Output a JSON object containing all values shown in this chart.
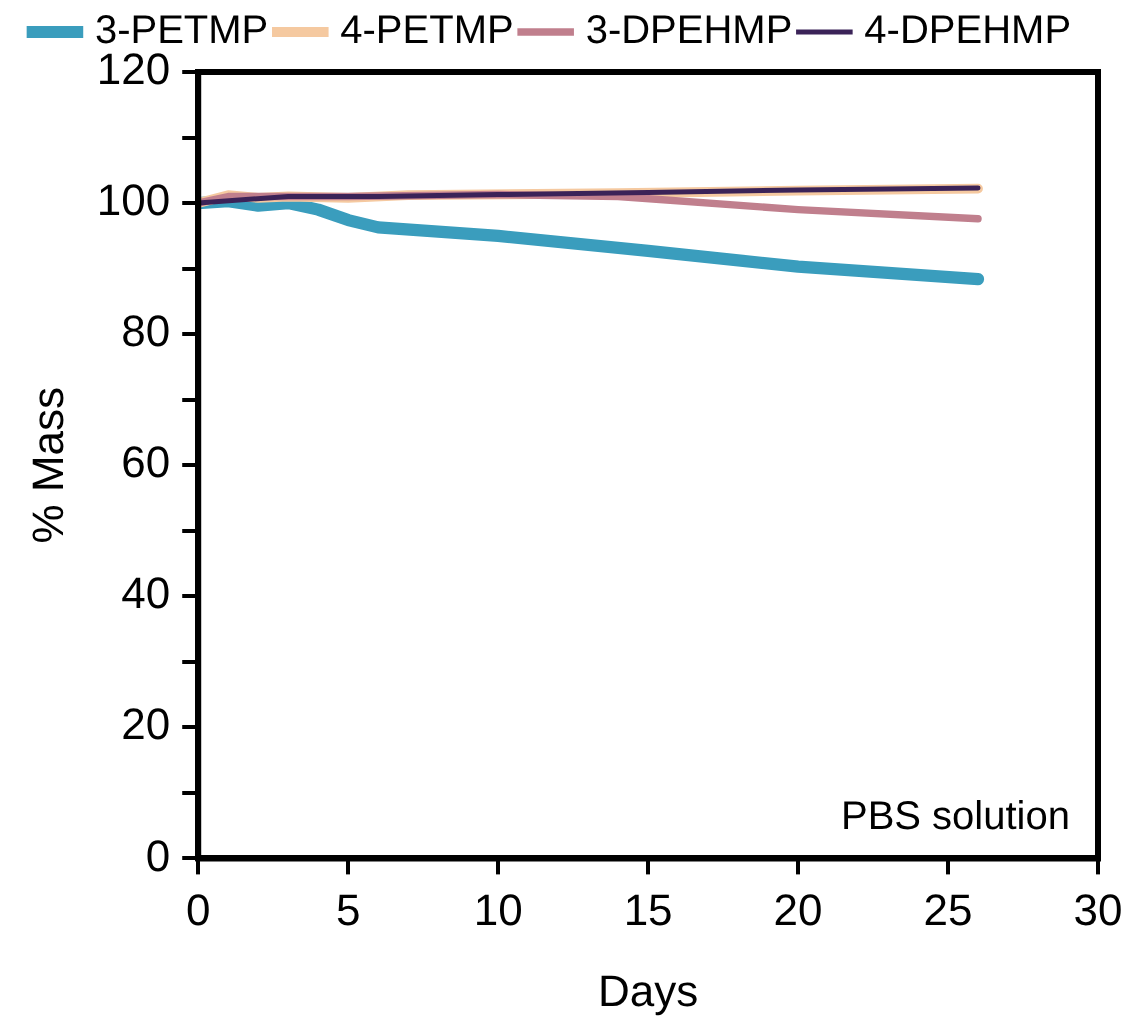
{
  "chart_data": {
    "type": "line",
    "xlabel": "Days",
    "ylabel": "% Mass",
    "annotations": [
      "PBS solution"
    ],
    "xlim": [
      0,
      30
    ],
    "xticks": [
      0,
      5,
      10,
      15,
      20,
      25,
      30
    ],
    "ylim": [
      0,
      120
    ],
    "yticks": [
      0,
      {
        "value": 10,
        "label": null
      },
      20,
      {
        "value": 30,
        "label": null
      },
      40,
      {
        "value": 50,
        "label": null
      },
      60,
      {
        "value": 70,
        "label": null
      },
      80,
      {
        "value": 90,
        "label": null
      },
      100,
      {
        "value": 110,
        "label": null
      },
      120
    ],
    "grid": false,
    "legend": "top",
    "marker": "none",
    "line_style": "solid",
    "series": [
      {
        "name": "3-PETMP",
        "color": "#3a9dbd",
        "x": [
          0,
          1,
          2,
          3,
          4,
          5,
          6,
          10,
          15,
          20,
          26
        ],
        "values": [
          100,
          100.3,
          99.6,
          100,
          99,
          97.4,
          96.3,
          95,
          92.7,
          90.3,
          88.4
        ]
      },
      {
        "name": "4-PETMP",
        "color": "#f5c9a0",
        "x": [
          0,
          1,
          2,
          3,
          5,
          7,
          14,
          20,
          26
        ],
        "values": [
          100,
          101.2,
          100.8,
          101,
          100.8,
          101.2,
          101.5,
          101.9,
          102.2
        ]
      },
      {
        "name": "3-DPEHMP",
        "color": "#c07f8d",
        "x": [
          0,
          1,
          3,
          5,
          10,
          14,
          20,
          26
        ],
        "values": [
          100,
          101,
          101,
          101,
          101.3,
          101,
          99,
          97.6
        ]
      },
      {
        "name": "4-DPEHMP",
        "color": "#3b2358",
        "x": [
          0,
          3,
          6,
          10,
          15,
          20,
          26
        ],
        "values": [
          100,
          101,
          101,
          101.3,
          101.6,
          102,
          102.3
        ]
      }
    ]
  }
}
